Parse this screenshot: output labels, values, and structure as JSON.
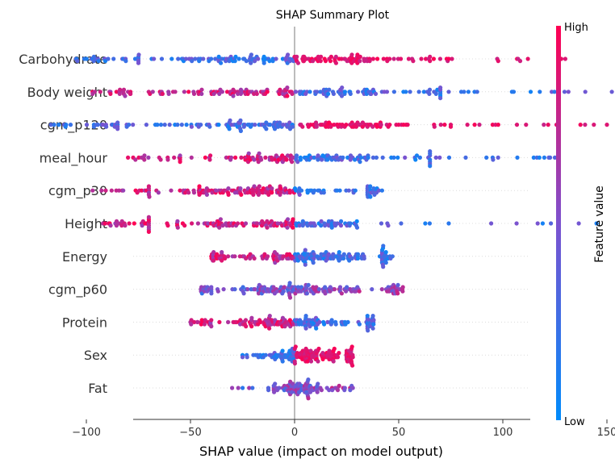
{
  "chart_data": {
    "type": "scatter",
    "title": "SHAP Summary Plot",
    "xlabel": "SHAP value (impact on model output)",
    "ylabel": "",
    "xlim": [
      -130,
      190
    ],
    "xticks": [
      -100,
      -50,
      0,
      50,
      100,
      150
    ],
    "xtick_labels": [
      "−100",
      "−50",
      "0",
      "50",
      "100",
      "150"
    ],
    "colorbar": {
      "title": "Feature value",
      "high_label": "High",
      "low_label": "Low",
      "low_color": "#008bfb",
      "high_color": "#ff0052"
    },
    "features": [
      {
        "name": "Carbohydrate",
        "min": -105,
        "max": 130,
        "c_lo": -75,
        "c_hi": 65,
        "n": 190,
        "sep": "pos",
        "spread": 8
      },
      {
        "name": "Body weight",
        "min": -97,
        "max": 175,
        "c_lo": -80,
        "c_hi": 70,
        "n": 190,
        "sep": "neg",
        "spread": 9
      },
      {
        "name": "cgm_p120",
        "min": -117,
        "max": 150,
        "c_lo": -85,
        "c_hi": 75,
        "n": 190,
        "sep": "pos",
        "spread": 9
      },
      {
        "name": "meal_hour",
        "min": -80,
        "max": 125,
        "c_lo": -55,
        "c_hi": 65,
        "n": 160,
        "sep": "neg",
        "spread": 8
      },
      {
        "name": "cgm_p30",
        "min": -97,
        "max": 42,
        "c_lo": -70,
        "c_hi": 35,
        "n": 170,
        "sep": "neg",
        "spread": 10
      },
      {
        "name": "Height",
        "min": -92,
        "max": 145,
        "c_lo": -70,
        "c_hi": 45,
        "n": 165,
        "sep": "neg",
        "spread": 9
      },
      {
        "name": "Energy",
        "min": -40,
        "max": 47,
        "c_lo": -35,
        "c_hi": 42,
        "n": 170,
        "sep": "neg",
        "spread": 10
      },
      {
        "name": "cgm_p60",
        "min": -45,
        "max": 52,
        "c_lo": -40,
        "c_hi": 45,
        "n": 165,
        "sep": "mixed",
        "spread": 9
      },
      {
        "name": "Protein",
        "min": -50,
        "max": 38,
        "c_lo": -40,
        "c_hi": 35,
        "n": 160,
        "sep": "neg",
        "spread": 9
      },
      {
        "name": "Sex",
        "min": -25,
        "max": 28,
        "c_lo": -15,
        "c_hi": 25,
        "n": 150,
        "sep": "pos",
        "spread": 11
      },
      {
        "name": "Fat",
        "min": -30,
        "max": 28,
        "c_lo": -10,
        "c_hi": 18,
        "n": 95,
        "sep": "mixed",
        "spread": 8
      }
    ]
  }
}
